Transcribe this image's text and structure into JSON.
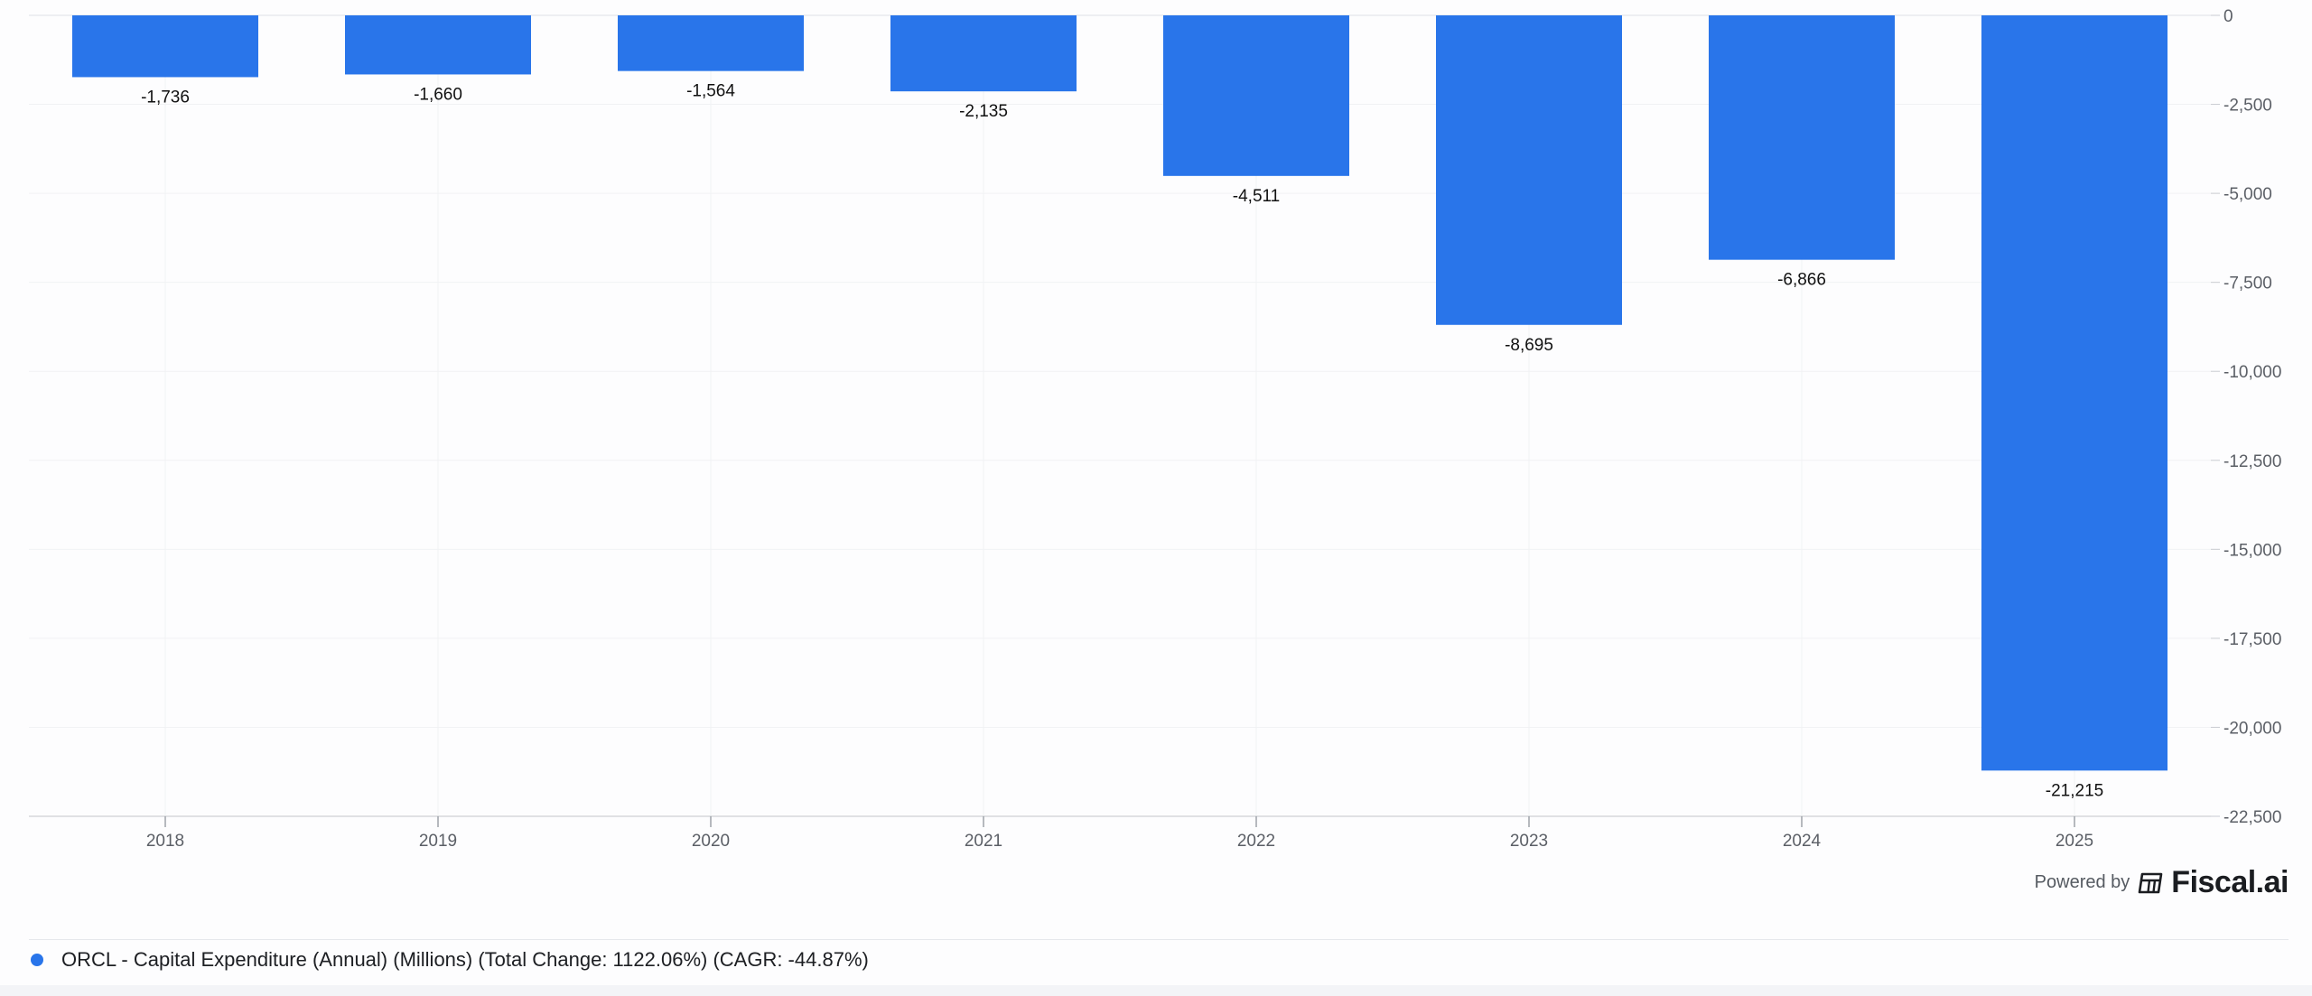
{
  "chart_data": {
    "type": "bar",
    "categories": [
      "2018",
      "2019",
      "2020",
      "2021",
      "2022",
      "2023",
      "2024",
      "2025"
    ],
    "series": [
      {
        "name": "ORCL - Capital Expenditure (Annual) (Millions) (Total Change: 1122.06%) (CAGR: -44.87%)",
        "values": [
          -1736,
          -1660,
          -1564,
          -2135,
          -4511,
          -8695,
          -6866,
          -21215
        ],
        "labels": [
          "-1,736",
          "-1,660",
          "-1,564",
          "-2,135",
          "-4,511",
          "-8,695",
          "-6,866",
          "-21,215"
        ]
      }
    ],
    "ylim": [
      -22500,
      0
    ],
    "yticks": [
      0,
      -2500,
      -5000,
      -7500,
      -10000,
      -12500,
      -15000,
      -17500,
      -20000,
      -22500
    ],
    "ytick_labels": [
      "0",
      "-2,500",
      "-5,000",
      "-7,500",
      "-10,000",
      "-12,500",
      "-15,000",
      "-17,500",
      "-20,000",
      "-22,500"
    ],
    "y_axis_position": "right",
    "grid": true,
    "legend_position": "bottom-left",
    "bar_color": "#2975ea",
    "title": "",
    "xlabel": "",
    "ylabel": ""
  },
  "credit": {
    "powered_by": "Powered by",
    "brand": "Fiscal.ai",
    "logo_icon": "fiscal-logo-icon"
  },
  "legend": {
    "label": "ORCL - Capital Expenditure (Annual) (Millions) (Total Change: 1122.06%) (CAGR: -44.87%)",
    "marker_color": "#2975ea"
  }
}
